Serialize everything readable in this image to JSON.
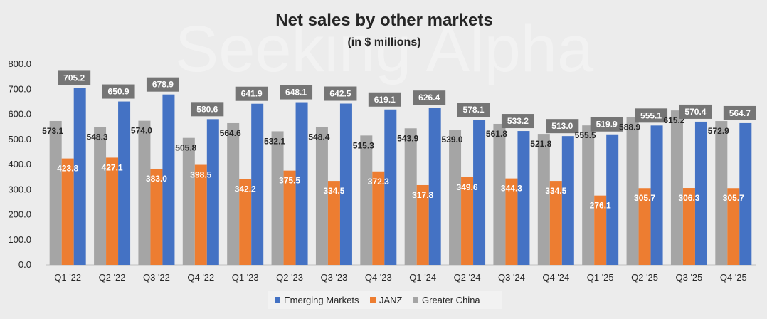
{
  "chart_data": {
    "type": "bar",
    "title": "Net sales by other markets",
    "subtitle": "(in $ millions)",
    "categories": [
      "Q1 '22",
      "Q2 '22",
      "Q3 '22",
      "Q4 '22",
      "Q1 '23",
      "Q2 '23",
      "Q3 '23",
      "Q4 '23",
      "Q1 '24",
      "Q2 '24",
      "Q3 '24",
      "Q4 '24",
      "Q1 '25",
      "Q2 '25",
      "Q3 '25",
      "Q4 '25"
    ],
    "ylim": [
      0,
      800
    ],
    "yticks": [
      "0.0",
      "100.0",
      "200.0",
      "300.0",
      "400.0",
      "500.0",
      "600.0",
      "700.0",
      "800.0"
    ],
    "series": [
      {
        "name": "Greater China",
        "color": "#a5a5a5",
        "values": [
          573.1,
          548.3,
          574.0,
          505.8,
          564.6,
          532.1,
          548.4,
          515.3,
          543.9,
          539.0,
          561.8,
          521.8,
          555.5,
          588.9,
          615.2,
          572.9
        ],
        "labels": [
          "573.1",
          "548.3",
          "574.0",
          "505.8",
          "564.6",
          "532.1",
          "548.4",
          "515.3",
          "543.9",
          "539.0",
          "561.8",
          "521.8",
          "555.5",
          "588.9",
          "615.2",
          "572.9"
        ]
      },
      {
        "name": "JANZ",
        "color": "#ed7d31",
        "values": [
          423.8,
          427.1,
          383.0,
          398.5,
          342.2,
          375.5,
          334.5,
          372.3,
          317.8,
          349.6,
          344.3,
          334.5,
          276.1,
          305.7,
          306.3,
          305.7
        ],
        "labels": [
          "423.8",
          "427.1",
          "383.0",
          "398.5",
          "342.2",
          "375.5",
          "334.5",
          "372.3",
          "317.8",
          "349.6",
          "344.3",
          "334.5",
          "276.1",
          "305.7",
          "306.3",
          "305.7"
        ]
      },
      {
        "name": "Emerging Markets",
        "color": "#4472c4",
        "values": [
          705.2,
          650.9,
          678.9,
          580.6,
          641.9,
          648.1,
          642.5,
          619.1,
          626.4,
          578.1,
          533.2,
          513.0,
          519.9,
          555.1,
          570.4,
          564.7
        ],
        "labels": [
          "705.2",
          "650.9",
          "678.9",
          "580.6",
          "641.9",
          "648.1",
          "642.5",
          "619.1",
          "626.4",
          "578.1",
          "533.2",
          "513.0",
          "519.9",
          "555.1",
          "570.4",
          "564.7"
        ]
      }
    ],
    "legend": [
      "Emerging Markets",
      "JANZ",
      "Greater China"
    ],
    "legend_position": "bottom",
    "watermark": "Seeking Alpha"
  }
}
